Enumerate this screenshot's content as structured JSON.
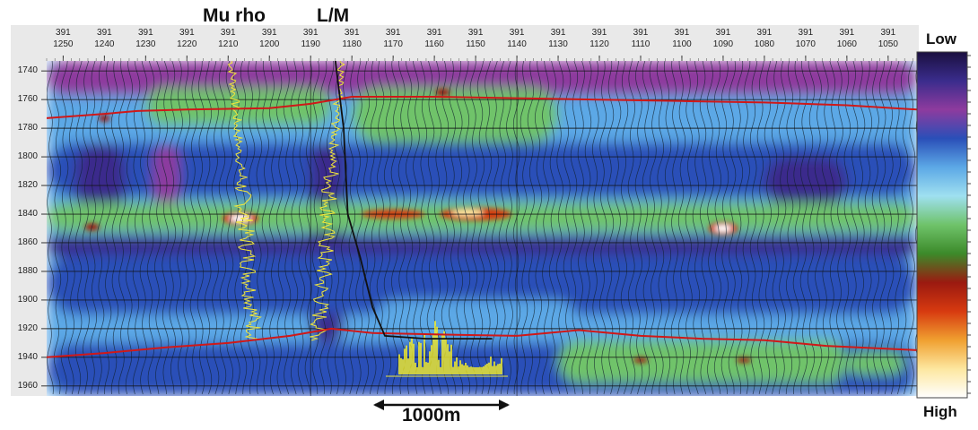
{
  "chart_data": {
    "type": "heatmap",
    "title": "",
    "log_titles": [
      "Mu rho",
      "L/M"
    ],
    "top_axis": {
      "line1": "391",
      "ticks": [
        1250,
        1240,
        1230,
        1220,
        1210,
        1200,
        1190,
        1180,
        1170,
        1160,
        1150,
        1140,
        1130,
        1120,
        1110,
        1100,
        1090,
        1080,
        1070,
        1060,
        1050
      ]
    },
    "y_axis": {
      "ticks": [
        1740,
        1760,
        1780,
        1800,
        1820,
        1840,
        1860,
        1880,
        1900,
        1920,
        1940,
        1960
      ],
      "range": [
        1733,
        1967
      ],
      "inverted": true
    },
    "x_range": [
      1254,
      1043
    ],
    "colorbar": {
      "low_label": "Low",
      "high_label": "High",
      "colors": [
        "#1a1040",
        "#3a2c8c",
        "#8e3b9e",
        "#2a4fb8",
        "#5ca8e6",
        "#9fe0f0",
        "#6fc36a",
        "#3c8a2a",
        "#9b1a10",
        "#d73a10",
        "#f0a030",
        "#fde7a0",
        "#ffffff"
      ]
    },
    "scale_bar": {
      "label": "1000m"
    },
    "horizons": [
      {
        "name": "upper-horizon",
        "color": "#d01818",
        "points": [
          [
            1254,
            1773
          ],
          [
            1240,
            1770
          ],
          [
            1232,
            1768
          ],
          [
            1220,
            1767
          ],
          [
            1200,
            1766
          ],
          [
            1190,
            1763
          ],
          [
            1180,
            1758
          ],
          [
            1160,
            1758
          ],
          [
            1140,
            1759
          ],
          [
            1120,
            1760
          ],
          [
            1100,
            1761
          ],
          [
            1080,
            1762
          ],
          [
            1060,
            1764
          ],
          [
            1043,
            1767
          ]
        ]
      },
      {
        "name": "lower-horizon",
        "color": "#d01818",
        "points": [
          [
            1254,
            1940
          ],
          [
            1240,
            1937
          ],
          [
            1225,
            1933
          ],
          [
            1210,
            1930
          ],
          [
            1195,
            1925
          ],
          [
            1185,
            1920
          ],
          [
            1175,
            1923
          ],
          [
            1160,
            1924
          ],
          [
            1140,
            1925
          ],
          [
            1125,
            1921
          ],
          [
            1110,
            1925
          ],
          [
            1095,
            1927
          ],
          [
            1080,
            1928
          ],
          [
            1065,
            1932
          ],
          [
            1043,
            1935
          ]
        ]
      }
    ],
    "well_path": {
      "color": "#111111",
      "points": [
        [
          1184,
          1733
        ],
        [
          1182,
          1780
        ],
        [
          1181,
          1840
        ],
        [
          1178,
          1870
        ],
        [
          1175,
          1905
        ],
        [
          1172,
          1925
        ],
        [
          1162,
          1927
        ],
        [
          1146,
          1927
        ]
      ]
    }
  }
}
